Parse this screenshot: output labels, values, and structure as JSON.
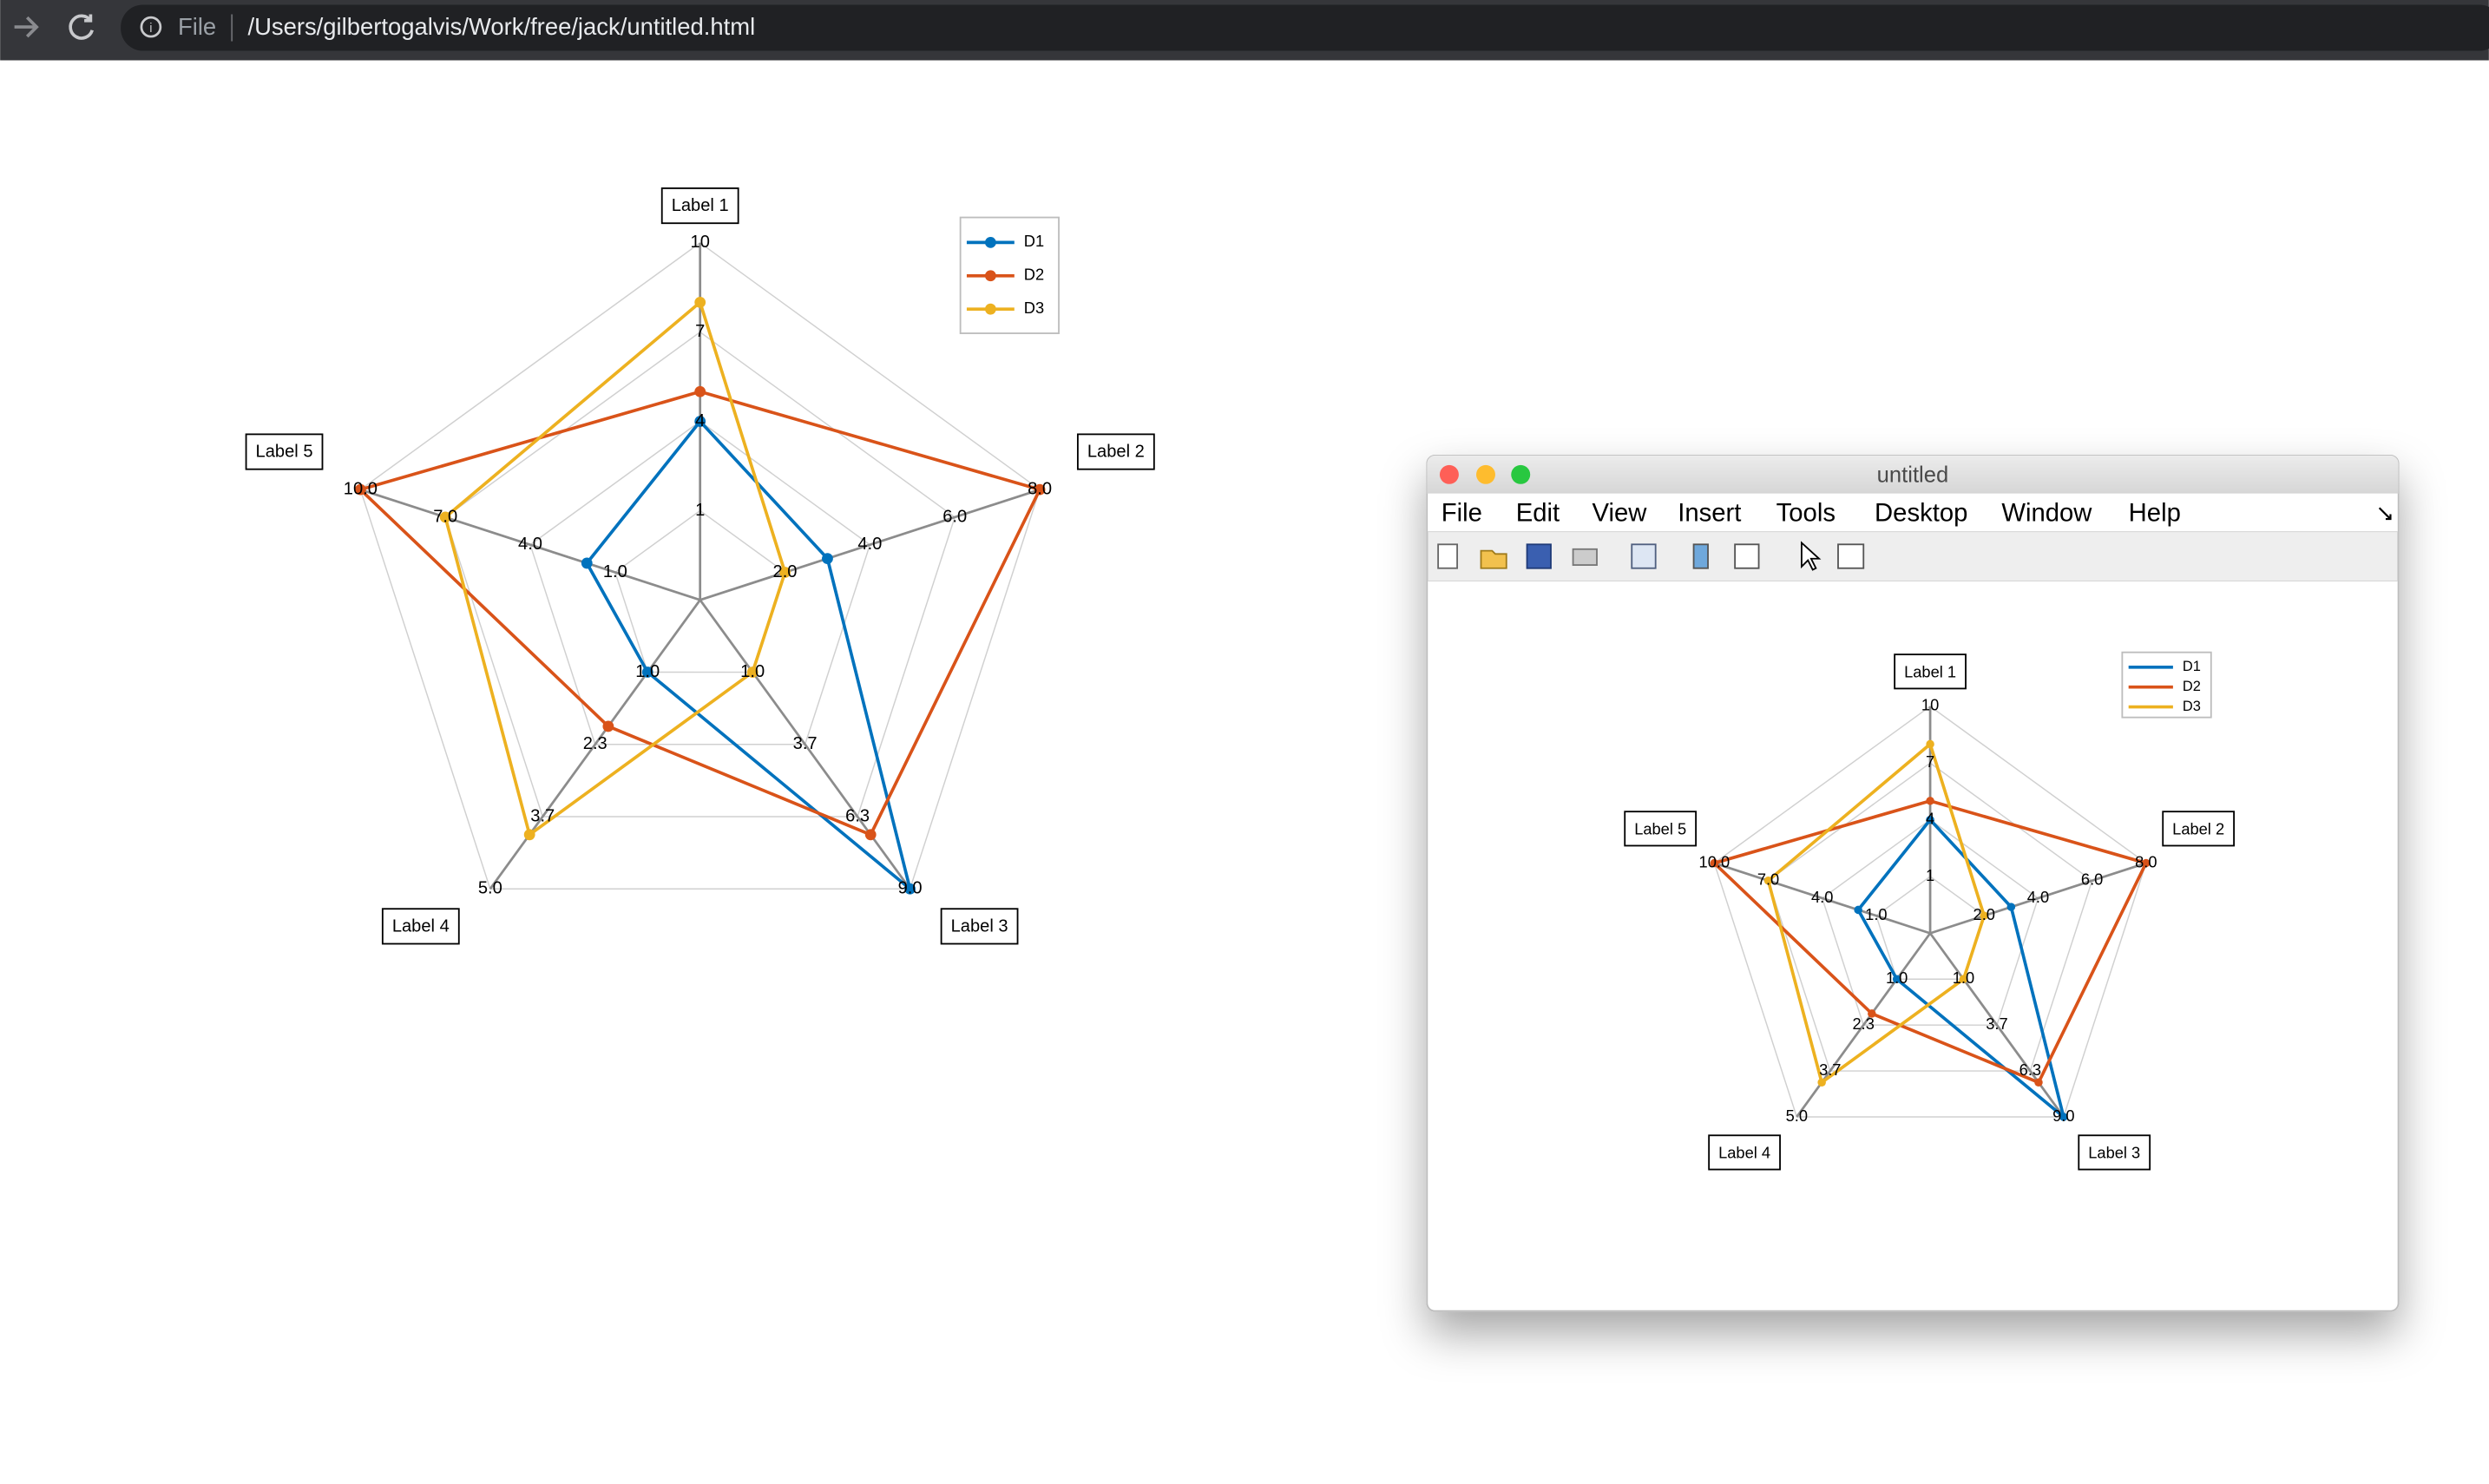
{
  "browser": {
    "scheme": "File",
    "url": "/Users/gilbertogalvis/Work/free/jack/untitled.html"
  },
  "window": {
    "title": "untitled",
    "menu": [
      "File",
      "Edit",
      "View",
      "Insert",
      "Tools",
      "Desktop",
      "Window",
      "Help"
    ]
  },
  "chart_data": [
    {
      "type": "radar",
      "axes": [
        {
          "label": "Label 1",
          "lim": [
            -2,
            10
          ],
          "ticks": [
            1,
            4,
            7,
            10
          ]
        },
        {
          "label": "Label 2",
          "lim": [
            0,
            8
          ],
          "ticks": [
            {
              "value": 2,
              "label": "2.0"
            },
            {
              "value": 4,
              "label": "4.0"
            },
            {
              "value": 6,
              "label": "6.0"
            },
            {
              "value": 8,
              "label": "8.0"
            }
          ]
        },
        {
          "label": "Label 3",
          "lim": [
            -1.667,
            9
          ],
          "ticks": [
            {
              "value": 1,
              "label": "1.0"
            },
            {
              "value": 3.667,
              "label": "3.7"
            },
            {
              "value": 6.333,
              "label": "6.3"
            },
            {
              "value": 9,
              "label": "9.0"
            }
          ]
        },
        {
          "label": "Label 4",
          "lim": [
            -0.333,
            5
          ],
          "ticks": [
            {
              "value": 1,
              "label": "1.0"
            },
            {
              "value": 2.333,
              "label": "2.3"
            },
            {
              "value": 3.667,
              "label": "3.7"
            },
            {
              "value": 5,
              "label": "5.0"
            }
          ]
        },
        {
          "label": "Label 5",
          "lim": [
            -2,
            10
          ],
          "ticks": [
            {
              "value": 1,
              "label": "1.0"
            },
            {
              "value": 4,
              "label": "4.0"
            },
            {
              "value": 7,
              "label": "7.0"
            },
            {
              "value": 10,
              "label": "10.0"
            }
          ]
        }
      ],
      "series": [
        {
          "name": "D1",
          "color": "#0072bd",
          "values": [
            4,
            3,
            9,
            1,
            2
          ]
        },
        {
          "name": "D2",
          "color": "#d95319",
          "values": [
            5,
            8,
            7,
            2,
            10
          ]
        },
        {
          "name": "D3",
          "color": "#edb120",
          "values": [
            8,
            2,
            1,
            4,
            7
          ]
        }
      ],
      "legend_markers": true
    },
    {
      "type": "radar",
      "axes": [
        {
          "label": "Label 1",
          "lim": [
            -2,
            10
          ],
          "ticks": [
            1,
            4,
            7,
            10
          ]
        },
        {
          "label": "Label 2",
          "lim": [
            0,
            8
          ],
          "ticks": [
            {
              "value": 2,
              "label": "2.0"
            },
            {
              "value": 4,
              "label": "4.0"
            },
            {
              "value": 6,
              "label": "6.0"
            },
            {
              "value": 8,
              "label": "8.0"
            }
          ]
        },
        {
          "label": "Label 3",
          "lim": [
            -1.667,
            9
          ],
          "ticks": [
            {
              "value": 1,
              "label": "1.0"
            },
            {
              "value": 3.667,
              "label": "3.7"
            },
            {
              "value": 6.333,
              "label": "6.3"
            },
            {
              "value": 9,
              "label": "9.0"
            }
          ]
        },
        {
          "label": "Label 4",
          "lim": [
            -0.333,
            5
          ],
          "ticks": [
            {
              "value": 1,
              "label": "1.0"
            },
            {
              "value": 2.333,
              "label": "2.3"
            },
            {
              "value": 3.667,
              "label": "3.7"
            },
            {
              "value": 5,
              "label": "5.0"
            }
          ]
        },
        {
          "label": "Label 5",
          "lim": [
            -2,
            10
          ],
          "ticks": [
            {
              "value": 1,
              "label": "1.0"
            },
            {
              "value": 4,
              "label": "4.0"
            },
            {
              "value": 7,
              "label": "7.0"
            },
            {
              "value": 10,
              "label": "10.0"
            }
          ]
        }
      ],
      "series": [
        {
          "name": "D1",
          "color": "#0072bd",
          "values": [
            4,
            3,
            9,
            1,
            2
          ]
        },
        {
          "name": "D2",
          "color": "#d95319",
          "values": [
            5,
            8,
            7,
            2,
            10
          ]
        },
        {
          "name": "D3",
          "color": "#edb120",
          "values": [
            8,
            2,
            1,
            4,
            7
          ]
        }
      ],
      "legend_markers": false
    }
  ]
}
